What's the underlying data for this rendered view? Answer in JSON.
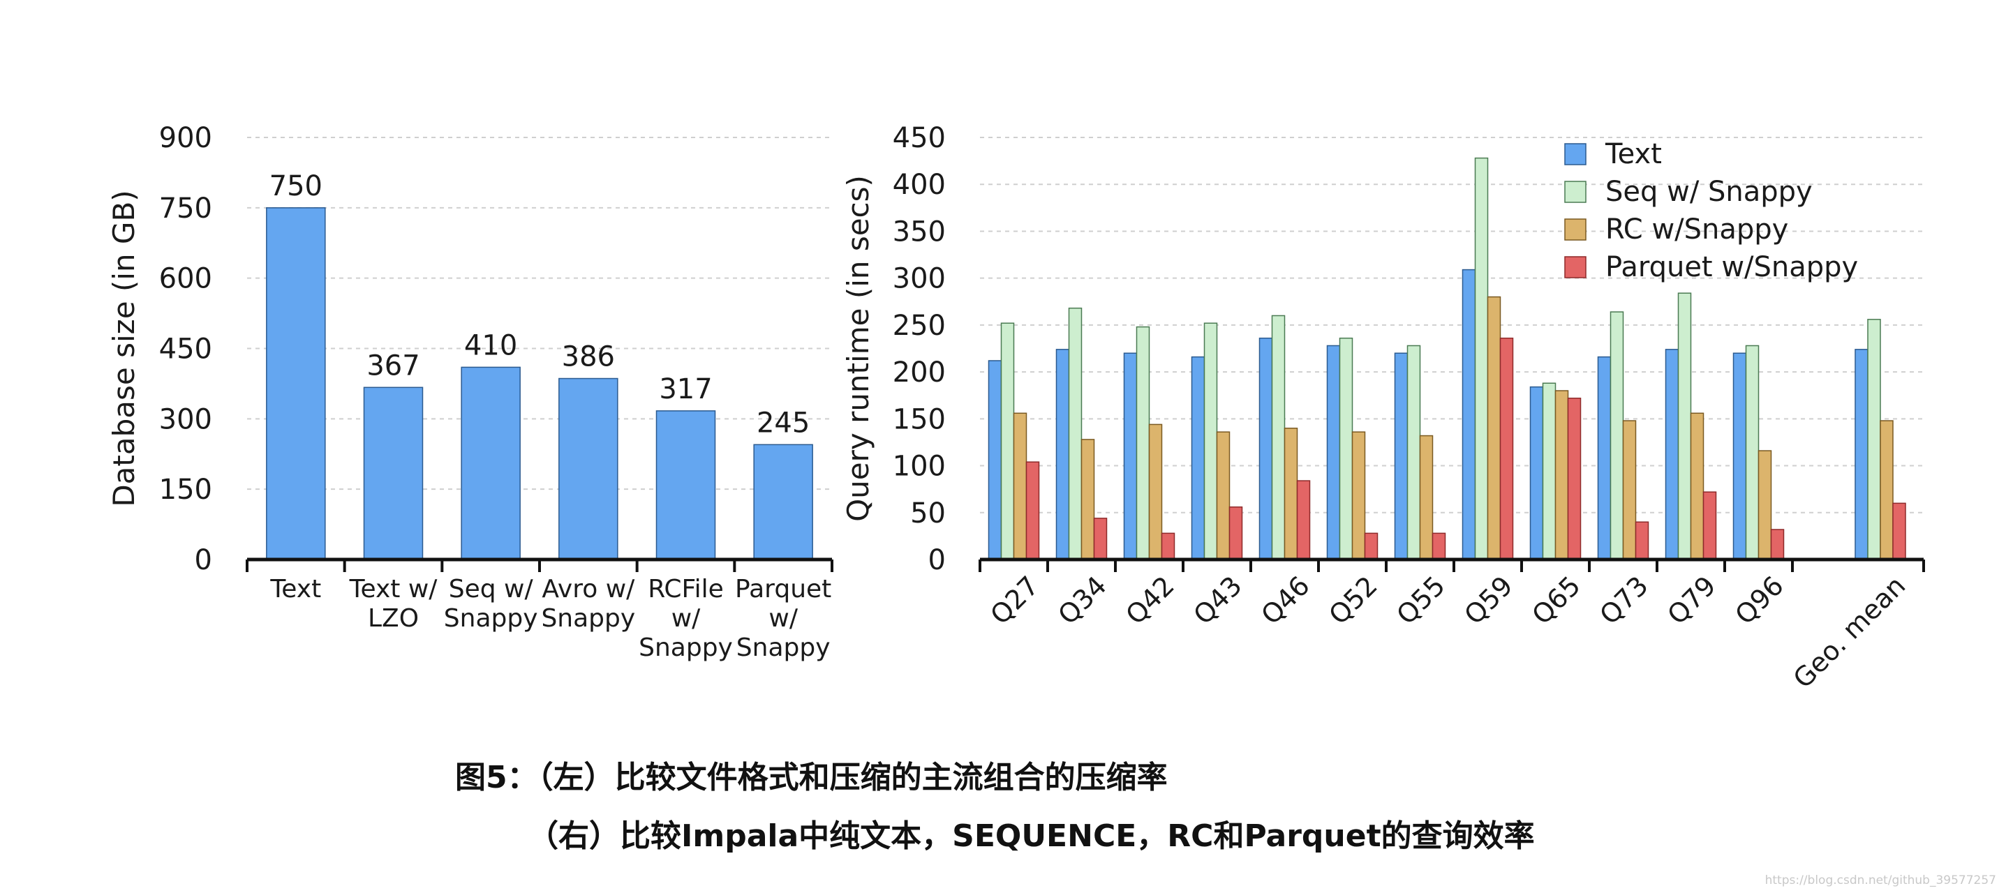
{
  "chart_data": [
    {
      "type": "bar",
      "ylabel": "Database size (in GB)",
      "xlabel": "",
      "ylim": [
        0,
        900
      ],
      "yticks": [
        0,
        150,
        300,
        450,
        600,
        750,
        900
      ],
      "grid": true,
      "categories": [
        [
          "Text"
        ],
        [
          "Text w/",
          "LZO"
        ],
        [
          "Seq w/",
          "Snappy"
        ],
        [
          "Avro w/",
          "Snappy"
        ],
        [
          "RCFile",
          "w/",
          "Snappy"
        ],
        [
          "Parquet",
          "w/",
          "Snappy"
        ]
      ],
      "values": [
        750,
        367,
        410,
        386,
        317,
        245
      ],
      "data_labels": [
        "750",
        "367",
        "410",
        "386",
        "317",
        "245"
      ],
      "color": "#64a6f0"
    },
    {
      "type": "bar",
      "ylabel": "Query runtime (in secs)",
      "xlabel": "",
      "ylim": [
        0,
        450
      ],
      "yticks": [
        0,
        50,
        100,
        150,
        200,
        250,
        300,
        350,
        400,
        450
      ],
      "grid": true,
      "legend_position": "top-right",
      "categories": [
        "Q27",
        "Q34",
        "Q42",
        "Q43",
        "Q46",
        "Q52",
        "Q55",
        "Q59",
        "Q65",
        "Q73",
        "Q79",
        "Q96",
        "Geo. mean"
      ],
      "series": [
        {
          "name": "Text",
          "color": "#64a6f0",
          "values": [
            212,
            224,
            220,
            216,
            236,
            228,
            220,
            309,
            184,
            216,
            224,
            220,
            224
          ]
        },
        {
          "name": "Seq w/ Snappy",
          "color": "#cdeecf",
          "values": [
            252,
            268,
            248,
            252,
            260,
            236,
            228,
            428,
            188,
            264,
            284,
            228,
            256
          ]
        },
        {
          "name": "RC w/Snappy",
          "color": "#dcb46c",
          "values": [
            156,
            128,
            144,
            136,
            140,
            136,
            132,
            280,
            180,
            148,
            156,
            116,
            148
          ]
        },
        {
          "name": "Parquet w/Snappy",
          "color": "#e36565",
          "values": [
            104,
            44,
            28,
            56,
            84,
            28,
            28,
            236,
            172,
            40,
            72,
            32,
            60
          ]
        }
      ]
    }
  ],
  "caption": {
    "line1": "图5：（左）比较文件格式和压缩的主流组合的压缩率",
    "line2": "（右）比较Impala中纯文本，SEQUENCE，RC和Parquet的查询效率"
  },
  "watermark": "https://blog.csdn.net/github_39577257"
}
